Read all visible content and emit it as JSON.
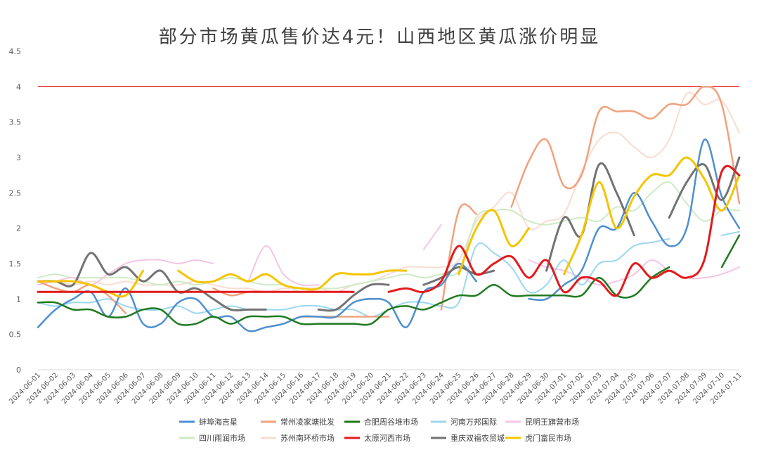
{
  "chart_data": {
    "type": "line",
    "title": "部分市场黄瓜售价达4元！山西地区黄瓜涨价明显",
    "xlabel": "",
    "ylabel": "",
    "ylim": [
      0,
      4.5
    ],
    "yticks": [
      "0",
      "0.5",
      "1",
      "1.5",
      "2",
      "2.5",
      "3",
      "3.5",
      "4",
      "4.5"
    ],
    "grid": false,
    "legend_position": "bottom",
    "reference_line": {
      "value": 4,
      "color": "#e31a1c"
    },
    "x": [
      "2024-06-01",
      "2024-06-02",
      "2024-06-03",
      "2024-06-04",
      "2024-06-05",
      "2024-06-06",
      "2024-06-07",
      "2024-06-08",
      "2024-06-09",
      "2024-06-10",
      "2024-06-11",
      "2024-06-12",
      "2024-06-13",
      "2024-06-14",
      "2024-06-15",
      "2024-06-16",
      "2024-06-17",
      "2024-06-18",
      "2024-06-19",
      "2024-06-20",
      "2024-06-21",
      "2024-06-22",
      "2024-06-23",
      "2024-06-24",
      "2024-06-25",
      "2024-06-26",
      "2024-06-27",
      "2024-06-28",
      "2024-06-29",
      "2024-06-30",
      "2024-07-01",
      "2024-07-02",
      "2024-07-03",
      "2024-07-04",
      "2024-07-05",
      "2024-07-06",
      "2024-07-07",
      "2024-07-08",
      "2024-07-09",
      "2024-07-10",
      "2024-07-11"
    ],
    "series": [
      {
        "name": "蚌埠海吉星",
        "color": "#4e8fd0",
        "width": 2.5,
        "values": [
          0.6,
          0.85,
          1.0,
          1.1,
          0.75,
          1.15,
          0.65,
          0.65,
          0.95,
          1.0,
          0.75,
          0.75,
          0.55,
          0.6,
          0.65,
          0.75,
          0.75,
          0.75,
          0.95,
          1.0,
          0.95,
          0.6,
          1.1,
          1.2,
          1.5,
          1.25,
          null,
          null,
          1.0,
          1.0,
          1.2,
          1.4,
          2.0,
          2.0,
          2.5,
          2.1,
          1.75,
          2.0,
          3.25,
          2.45,
          2.0
        ]
      },
      {
        "name": "常州凌家塘批发",
        "color": "#f0a27e",
        "width": 2.5,
        "values": [
          1.25,
          1.15,
          1.1,
          1.2,
          1.05,
          0.8,
          null,
          null,
          null,
          null,
          1.15,
          1.05,
          1.1,
          1.1,
          null,
          0.75,
          0.75,
          0.75,
          0.75,
          0.75,
          0.75,
          null,
          null,
          0.85,
          2.25,
          2.2,
          null,
          2.3,
          2.95,
          3.25,
          2.6,
          2.75,
          3.65,
          3.65,
          3.65,
          3.55,
          3.75,
          3.75,
          4.0,
          3.75,
          2.35
        ]
      },
      {
        "name": "合肥周谷堆市场",
        "color": "#1f7a1f",
        "width": 2.5,
        "values": [
          0.95,
          0.95,
          0.85,
          0.85,
          0.75,
          0.75,
          0.85,
          0.85,
          0.65,
          0.65,
          0.75,
          0.65,
          0.75,
          0.75,
          0.75,
          0.65,
          0.65,
          0.65,
          0.65,
          0.65,
          0.85,
          0.9,
          0.85,
          0.95,
          1.05,
          1.05,
          1.2,
          1.05,
          1.05,
          1.05,
          1.05,
          1.05,
          1.3,
          1.05,
          1.05,
          1.3,
          1.45,
          null,
          null,
          1.45,
          1.9
        ]
      },
      {
        "name": "河南万邦国际",
        "color": "#9ad7f0",
        "width": 2,
        "values": [
          0.95,
          0.9,
          0.95,
          0.95,
          1.0,
          0.9,
          0.85,
          0.85,
          0.9,
          0.8,
          0.85,
          0.9,
          0.85,
          0.85,
          0.85,
          0.9,
          0.9,
          0.85,
          0.85,
          0.75,
          0.85,
          0.95,
          0.95,
          0.9,
          0.95,
          1.75,
          1.65,
          1.45,
          1.1,
          1.2,
          1.55,
          1.2,
          1.5,
          1.55,
          1.75,
          1.8,
          1.85,
          null,
          null,
          1.9,
          1.95
        ]
      },
      {
        "name": "昆明王旗营市场",
        "color": "#f5c6e6",
        "width": 2,
        "values": [
          1.2,
          1.25,
          1.3,
          1.2,
          1.35,
          1.5,
          1.55,
          1.55,
          1.5,
          1.55,
          1.5,
          null,
          1.25,
          1.75,
          1.35,
          1.2,
          1.2,
          null,
          1.25,
          null,
          null,
          null,
          1.7,
          2.05,
          null,
          null,
          null,
          null,
          1.55,
          1.45,
          1.4,
          1.3,
          1.2,
          1.25,
          1.35,
          1.55,
          1.4,
          1.3,
          1.3,
          1.35,
          1.45
        ]
      },
      {
        "name": "四川雨润市场",
        "color": "#cdebc4",
        "width": 2,
        "values": [
          1.3,
          1.35,
          1.3,
          1.3,
          1.3,
          1.3,
          1.25,
          1.2,
          1.25,
          1.2,
          1.25,
          1.3,
          1.25,
          1.2,
          1.2,
          1.1,
          1.15,
          1.15,
          1.2,
          1.25,
          1.3,
          1.35,
          1.3,
          1.35,
          1.4,
          2.15,
          2.25,
          2.25,
          2.1,
          2.05,
          2.1,
          2.15,
          2.1,
          2.3,
          2.25,
          2.5,
          2.65,
          2.35,
          2.1,
          2.25,
          2.25
        ]
      },
      {
        "name": "苏州南环桥市场",
        "color": "#f8dcd0",
        "width": 2,
        "values": [
          1.25,
          1.25,
          1.2,
          1.25,
          1.2,
          1.25,
          1.2,
          1.2,
          1.2,
          1.25,
          1.2,
          1.15,
          1.15,
          1.1,
          1.15,
          1.15,
          1.15,
          1.1,
          1.2,
          1.25,
          1.35,
          1.45,
          1.45,
          1.45,
          1.55,
          2.1,
          2.3,
          2.5,
          2.0,
          2.1,
          2.2,
          2.8,
          3.25,
          3.35,
          3.15,
          3.0,
          3.25,
          3.9,
          3.75,
          3.8,
          3.35
        ]
      },
      {
        "name": "太原河西市场",
        "color": "#e31a1c",
        "width": 3,
        "values": [
          1.1,
          1.1,
          1.1,
          1.1,
          1.1,
          1.1,
          1.1,
          1.1,
          1.1,
          1.1,
          1.1,
          1.1,
          1.1,
          1.1,
          1.1,
          1.1,
          1.1,
          1.1,
          1.1,
          null,
          1.1,
          1.15,
          1.1,
          1.25,
          1.75,
          1.35,
          1.5,
          1.6,
          1.3,
          1.55,
          1.1,
          1.3,
          1.25,
          1.05,
          1.5,
          1.3,
          1.4,
          1.3,
          1.55,
          2.8,
          2.75
        ]
      },
      {
        "name": "重庆双福农贸城",
        "color": "#737373",
        "width": 3,
        "values": [
          1.25,
          1.25,
          1.2,
          1.65,
          1.35,
          1.45,
          1.25,
          1.4,
          1.1,
          1.15,
          1.0,
          0.85,
          0.85,
          0.85,
          null,
          null,
          0.85,
          0.85,
          1.05,
          1.2,
          1.2,
          null,
          1.2,
          1.3,
          1.45,
          1.35,
          1.4,
          null,
          null,
          1.4,
          2.15,
          1.9,
          2.9,
          2.5,
          1.9,
          null,
          2.15,
          2.65,
          2.9,
          2.4,
          3.0
        ]
      },
      {
        "name": "虎门富民市场",
        "color": "#f5c400",
        "width": 3,
        "values": [
          1.25,
          1.25,
          1.25,
          1.2,
          1.1,
          1.05,
          1.4,
          null,
          1.4,
          1.25,
          1.25,
          1.35,
          1.25,
          1.35,
          1.2,
          1.15,
          1.15,
          1.35,
          1.35,
          1.35,
          1.4,
          1.4,
          null,
          null,
          1.35,
          2.0,
          2.25,
          1.75,
          2.0,
          null,
          1.35,
          1.9,
          2.65,
          2.0,
          2.45,
          2.75,
          2.75,
          3.0,
          2.7,
          2.25,
          2.75
        ]
      }
    ]
  }
}
